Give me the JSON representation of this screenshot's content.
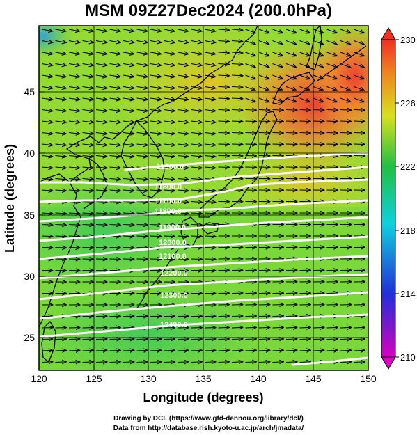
{
  "title": "MSM 09Z27Dec2024 (200.0hPa)",
  "xlabel": "Longitude (degrees)",
  "ylabel": "Latitude  (degrees)",
  "credit_line1": "Drawing by DCL (https://www.gfd-dennou.org/library/dcl/)",
  "credit_line2": "Data from http://database.rish.kyoto-u.ac.jp/arch/jmadata/",
  "map": {
    "lon_range": [
      120,
      150
    ],
    "lat_range": [
      22.4,
      47.6
    ],
    "lon_ticks": [
      "120",
      "125",
      "130",
      "135",
      "140",
      "145",
      "150"
    ],
    "lat_ticks": [
      "25",
      "30",
      "35",
      "40",
      "45"
    ],
    "colorbar_ticks": [
      "230",
      "226",
      "222",
      "218",
      "214",
      "210"
    ],
    "colorbar_range": [
      210,
      230
    ],
    "contour_labels": [
      "11900.0",
      "11800.0",
      "11700.0",
      "11800.0",
      "11900.0",
      "12000.0",
      "12100.0",
      "12200.0",
      "12300.0",
      "12400.0"
    ],
    "colors": {
      "field_warm": "#f04a3a",
      "field_mid": "#b8e020",
      "field_cool": "#4fd24a",
      "contour": "#ffffff",
      "coast": "#000000"
    }
  }
}
